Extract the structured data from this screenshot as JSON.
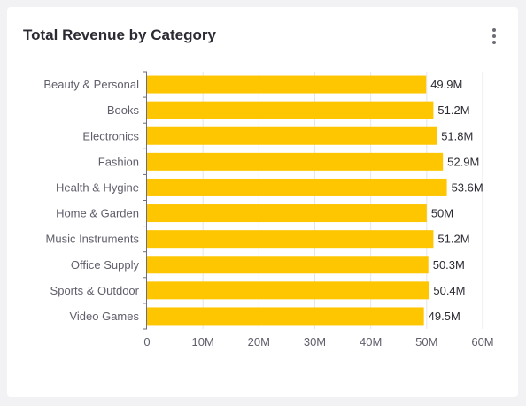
{
  "card": {
    "title": "Total Revenue by Category"
  },
  "menu": {
    "icon": "more-vertical-icon"
  },
  "colors": {
    "bar": "#fdc600",
    "grid": "#e6e6ea",
    "axis": "#6e6e78",
    "label": "#5f5f6b",
    "value_label": "#2b2b33"
  },
  "chart_data": {
    "type": "bar",
    "orientation": "horizontal",
    "categories": [
      "Beauty & Personal",
      "Books",
      "Electronics",
      "Fashion",
      "Health & Hygine",
      "Home & Garden",
      "Music Instruments",
      "Office Supply",
      "Sports & Outdoor",
      "Video Games"
    ],
    "values": [
      49.9,
      51.2,
      51.8,
      52.9,
      53.6,
      50,
      51.2,
      50.3,
      50.4,
      49.5
    ],
    "data_labels": [
      "49.9M",
      "51.2M",
      "51.8M",
      "52.9M",
      "53.6M",
      "50M",
      "51.2M",
      "50.3M",
      "50.4M",
      "49.5M"
    ],
    "x_ticks": [
      "0",
      "10M",
      "20M",
      "30M",
      "40M",
      "50M",
      "60M"
    ],
    "x_tick_values": [
      0,
      10,
      20,
      30,
      40,
      50,
      60
    ],
    "xlim": [
      0,
      60
    ],
    "unit": "M",
    "grid": true,
    "legend": false
  }
}
